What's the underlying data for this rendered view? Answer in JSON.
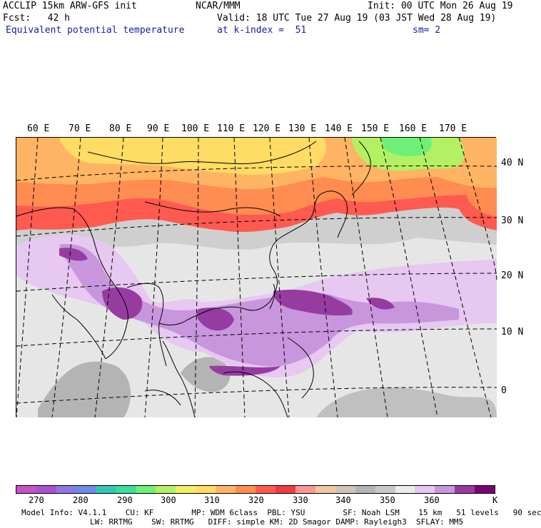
{
  "header": {
    "line1_left": "ACCLIP 15km ARW-GFS init",
    "line1_center": "NCAR/MMM",
    "line1_right": "Init: 00 UTC Mon 26 Aug 19",
    "line2_left": "Fcst:   42 h",
    "line2_right": "Valid: 18 UTC Tue 27 Aug 19 (03 JST Wed 28 Aug 19)",
    "line3_field": "Equivalent potential temperature",
    "line3_level": "at k-index =  51",
    "line3_smooth": "sm= 2"
  },
  "map": {
    "lon_labels": [
      "60 E",
      "70 E",
      "80 E",
      "90 E",
      "100 E",
      "110 E",
      "120 E",
      "130 E",
      "140 E",
      "150 E",
      "160 E",
      "170 E"
    ],
    "lat_labels": [
      "40 N",
      "30 N",
      "20 N",
      "10 N",
      "0"
    ]
  },
  "colorbar": {
    "colors": [
      "#c850c8",
      "#aa50d2",
      "#8c78e6",
      "#6e8ce6",
      "#32c8b4",
      "#3cdca0",
      "#6ef078",
      "#b4f064",
      "#f0f064",
      "#ffdc64",
      "#ffb464",
      "#ff8c50",
      "#ff5a50",
      "#f03c3c",
      "#ff9696",
      "#f0c8a0",
      "#d2c3b9",
      "#b4b4b4",
      "#c8c8c8",
      "#ebebeb",
      "#e6c8f0",
      "#c896dc",
      "#963ca0",
      "#780078"
    ],
    "tick_labels": [
      "270",
      "280",
      "290",
      "300",
      "310",
      "320",
      "330",
      "340",
      "350",
      "360"
    ],
    "unit": "K"
  },
  "footer": {
    "line1": "Model Info: V4.1.1    CU: KF        MP: WDM 6class  PBL: YSU        SF: Noah LSM    15 km   51 levels   90 sec",
    "line2": "LW: RRTMG    SW: RRTMG   DIFF: simple KM: 2D Smagor DAMP: Rayleigh3  SFLAY: MM5"
  }
}
